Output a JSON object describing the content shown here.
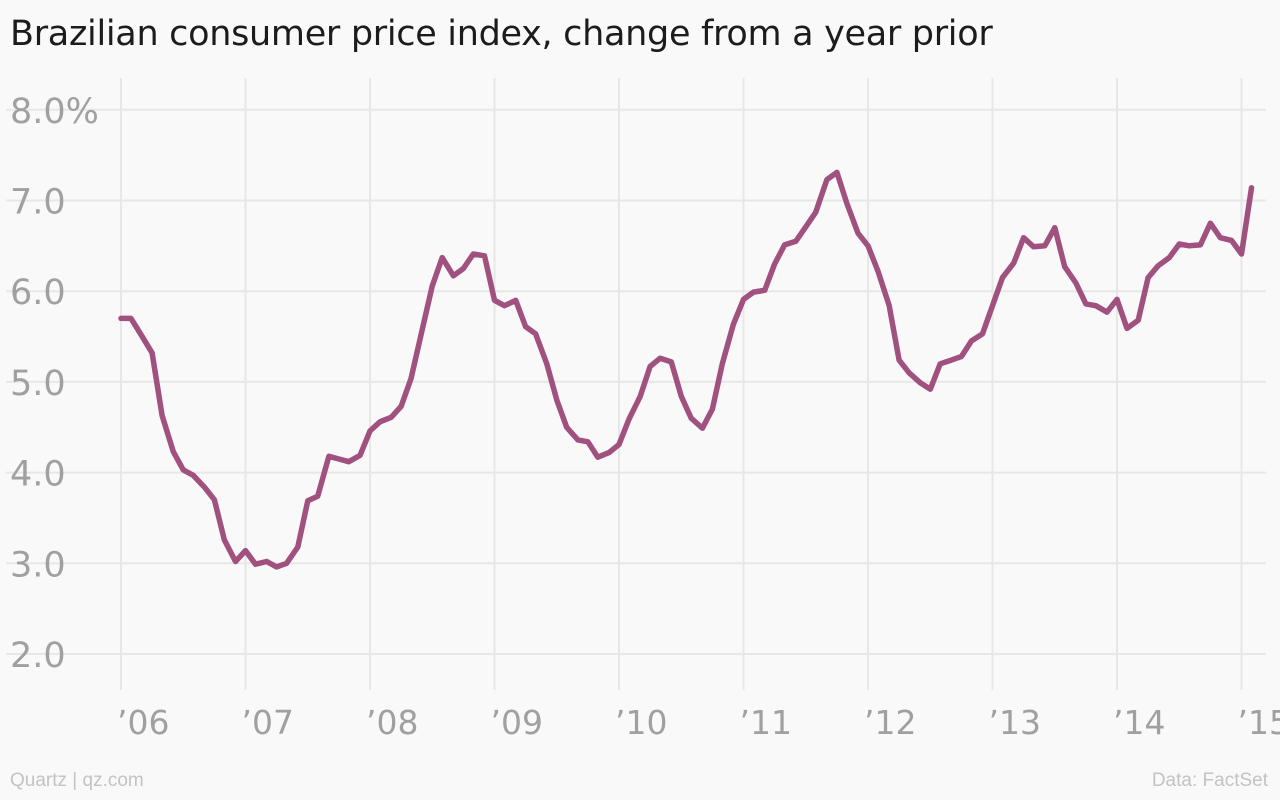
{
  "chart_data": {
    "type": "line",
    "title": "Brazilian consumer price index, change from a year prior",
    "xlabel": "",
    "ylabel": "",
    "y_ticks": [
      "8.0%",
      "7.0",
      "6.0",
      "5.0",
      "4.0",
      "3.0",
      "2.0"
    ],
    "y_tick_values": [
      8,
      7,
      6,
      5,
      4,
      3,
      2
    ],
    "x_ticks": [
      "’06",
      "’07",
      "’08",
      "’09",
      "’10",
      "’11",
      "’12",
      "’13",
      "’14",
      "’15"
    ],
    "x_tick_values": [
      2006,
      2007,
      2008,
      2009,
      2010,
      2011,
      2012,
      2013,
      2014,
      2015
    ],
    "xlim": [
      2005.9,
      2015.2
    ],
    "ylim": [
      1.6,
      8.5
    ],
    "grid": true,
    "line_color": "#a0517f",
    "series": [
      {
        "values": [
          [
            2006.0,
            5.7
          ],
          [
            2006.08,
            5.7
          ],
          [
            2006.17,
            5.5
          ],
          [
            2006.25,
            5.32
          ],
          [
            2006.33,
            4.63
          ],
          [
            2006.42,
            4.23
          ],
          [
            2006.5,
            4.03
          ],
          [
            2006.58,
            3.97
          ],
          [
            2006.67,
            3.84
          ],
          [
            2006.75,
            3.7
          ],
          [
            2006.83,
            3.26
          ],
          [
            2006.92,
            3.02
          ],
          [
            2007.0,
            3.14
          ],
          [
            2007.08,
            2.99
          ],
          [
            2007.17,
            3.02
          ],
          [
            2007.25,
            2.96
          ],
          [
            2007.33,
            3.0
          ],
          [
            2007.42,
            3.18
          ],
          [
            2007.5,
            3.69
          ],
          [
            2007.58,
            3.74
          ],
          [
            2007.67,
            4.18
          ],
          [
            2007.75,
            4.15
          ],
          [
            2007.83,
            4.12
          ],
          [
            2007.92,
            4.19
          ],
          [
            2008.0,
            4.46
          ],
          [
            2008.08,
            4.56
          ],
          [
            2008.17,
            4.61
          ],
          [
            2008.25,
            4.73
          ],
          [
            2008.33,
            5.04
          ],
          [
            2008.42,
            5.58
          ],
          [
            2008.5,
            6.06
          ],
          [
            2008.58,
            6.37
          ],
          [
            2008.67,
            6.17
          ],
          [
            2008.75,
            6.25
          ],
          [
            2008.83,
            6.41
          ],
          [
            2008.92,
            6.39
          ],
          [
            2009.0,
            5.9
          ],
          [
            2009.08,
            5.84
          ],
          [
            2009.17,
            5.9
          ],
          [
            2009.25,
            5.61
          ],
          [
            2009.33,
            5.53
          ],
          [
            2009.42,
            5.2
          ],
          [
            2009.5,
            4.8
          ],
          [
            2009.58,
            4.5
          ],
          [
            2009.67,
            4.36
          ],
          [
            2009.75,
            4.34
          ],
          [
            2009.83,
            4.17
          ],
          [
            2009.92,
            4.22
          ],
          [
            2010.0,
            4.31
          ],
          [
            2010.08,
            4.59
          ],
          [
            2010.17,
            4.84
          ],
          [
            2010.25,
            5.17
          ],
          [
            2010.33,
            5.26
          ],
          [
            2010.42,
            5.22
          ],
          [
            2010.5,
            4.84
          ],
          [
            2010.58,
            4.6
          ],
          [
            2010.67,
            4.49
          ],
          [
            2010.75,
            4.7
          ],
          [
            2010.83,
            5.2
          ],
          [
            2010.92,
            5.64
          ],
          [
            2011.0,
            5.91
          ],
          [
            2011.08,
            5.99
          ],
          [
            2011.17,
            6.01
          ],
          [
            2011.25,
            6.3
          ],
          [
            2011.33,
            6.51
          ],
          [
            2011.42,
            6.55
          ],
          [
            2011.5,
            6.71
          ],
          [
            2011.58,
            6.87
          ],
          [
            2011.67,
            7.23
          ],
          [
            2011.75,
            7.31
          ],
          [
            2011.83,
            6.97
          ],
          [
            2011.92,
            6.64
          ],
          [
            2012.0,
            6.5
          ],
          [
            2012.08,
            6.22
          ],
          [
            2012.17,
            5.84
          ],
          [
            2012.25,
            5.24
          ],
          [
            2012.33,
            5.1
          ],
          [
            2012.42,
            4.99
          ],
          [
            2012.5,
            4.92
          ],
          [
            2012.58,
            5.2
          ],
          [
            2012.67,
            5.24
          ],
          [
            2012.75,
            5.28
          ],
          [
            2012.83,
            5.45
          ],
          [
            2012.92,
            5.53
          ],
          [
            2013.0,
            5.84
          ],
          [
            2013.08,
            6.15
          ],
          [
            2013.17,
            6.31
          ],
          [
            2013.25,
            6.59
          ],
          [
            2013.33,
            6.49
          ],
          [
            2013.42,
            6.5
          ],
          [
            2013.5,
            6.7
          ],
          [
            2013.58,
            6.27
          ],
          [
            2013.67,
            6.09
          ],
          [
            2013.75,
            5.86
          ],
          [
            2013.83,
            5.84
          ],
          [
            2013.92,
            5.77
          ],
          [
            2014.0,
            5.91
          ],
          [
            2014.08,
            5.59
          ],
          [
            2014.17,
            5.68
          ],
          [
            2014.25,
            6.15
          ],
          [
            2014.33,
            6.28
          ],
          [
            2014.42,
            6.37
          ],
          [
            2014.5,
            6.52
          ],
          [
            2014.58,
            6.5
          ],
          [
            2014.67,
            6.51
          ],
          [
            2014.75,
            6.75
          ],
          [
            2014.83,
            6.59
          ],
          [
            2014.92,
            6.56
          ],
          [
            2015.0,
            6.41
          ],
          [
            2015.08,
            7.14
          ]
        ]
      }
    ]
  },
  "footer": {
    "source_left": "Quartz | qz.com",
    "source_right": "Data: FactSet"
  }
}
